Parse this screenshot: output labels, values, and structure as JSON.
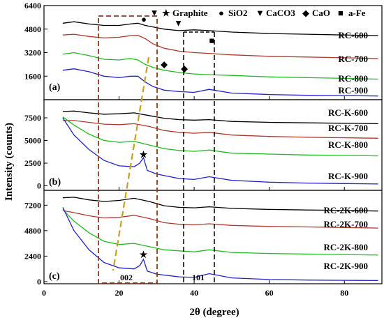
{
  "chart_data": {
    "type": "line",
    "xlabel": "2θ (degree)",
    "ylabel": "Intensity (counts)",
    "xlim": [
      0,
      90
    ],
    "x_ticks": [
      0,
      20,
      40,
      60,
      80
    ],
    "legend": {
      "placement": "top",
      "entries": [
        {
          "symbol": "★",
          "name": "Graphite"
        },
        {
          "symbol": "●",
          "name": "SiO2"
        },
        {
          "symbol": "▼",
          "name": "CaCO3"
        },
        {
          "symbol": "◆",
          "name": "CaO"
        },
        {
          "symbol": "■",
          "name": "a-Fe"
        }
      ]
    },
    "region_labels": {
      "left": "002",
      "right": "101"
    },
    "panels": [
      {
        "letter": "(a)",
        "ylim": [
          0,
          6400
        ],
        "y_ticks": [
          1600,
          3200,
          4800,
          6400
        ],
        "series": [
          {
            "name": "RC-600",
            "color": "#000000",
            "x": [
              5,
              8,
              12,
              16,
              20,
              23,
              25,
              27,
              29,
              32,
              36,
              40,
              44,
              50,
              60,
              70,
              80,
              89
            ],
            "y": [
              5200,
              5300,
              5150,
              5050,
              5050,
              5150,
              5200,
              5050,
              4950,
              4800,
              4700,
              4750,
              4700,
              4600,
              4500,
              4450,
              4400,
              4350
            ]
          },
          {
            "name": "RC-700",
            "color": "#b03a2e",
            "x": [
              5,
              8,
              12,
              16,
              20,
              23,
              25,
              27,
              29,
              32,
              36,
              40,
              44,
              50,
              60,
              70,
              80,
              89
            ],
            "y": [
              4400,
              4450,
              4300,
              4200,
              4250,
              4350,
              4380,
              4150,
              3800,
              3500,
              3300,
              3200,
              3150,
              3050,
              2950,
              2900,
              2850,
              2800
            ]
          },
          {
            "name": "RC-800",
            "color": "#22bb22",
            "x": [
              5,
              8,
              12,
              16,
              20,
              23,
              25,
              27,
              29,
              32,
              36,
              40,
              44,
              50,
              60,
              70,
              80,
              89
            ],
            "y": [
              3100,
              3200,
              3000,
              2750,
              2700,
              2800,
              2700,
              2400,
              2200,
              2000,
              1850,
              1750,
              1700,
              1650,
              1550,
              1500,
              1450,
              1400
            ]
          },
          {
            "name": "RC-900",
            "color": "#2222cc",
            "x": [
              5,
              8,
              12,
              16,
              20,
              23,
              25,
              27,
              29,
              32,
              36,
              40,
              44,
              50,
              60,
              70,
              80,
              89
            ],
            "y": [
              2000,
              2100,
              1900,
              1600,
              1500,
              1600,
              1600,
              1200,
              900,
              650,
              550,
              500,
              700,
              450,
              350,
              300,
              280,
              250
            ]
          }
        ],
        "series_labels": [
          "RC-600",
          "RC-700",
          "RC-800",
          "RC-900"
        ]
      },
      {
        "letter": "(b)",
        "ylim": [
          -500,
          9500
        ],
        "y_ticks": [
          0,
          2500,
          5000,
          7500
        ],
        "series": [
          {
            "name": "RC-K-600",
            "color": "#000000",
            "x": [
              5,
              8,
              12,
              16,
              20,
              24,
              28,
              32,
              36,
              40,
              44,
              50,
              60,
              70,
              80,
              89
            ],
            "y": [
              8200,
              8250,
              8050,
              7900,
              7950,
              8050,
              7750,
              7450,
              7300,
              7250,
              7300,
              7100,
              7000,
              6950,
              6900,
              6850
            ]
          },
          {
            "name": "RC-K-700",
            "color": "#b03a2e",
            "x": [
              5,
              8,
              12,
              16,
              20,
              24,
              28,
              32,
              36,
              40,
              44,
              50,
              60,
              70,
              80,
              89
            ],
            "y": [
              7200,
              7200,
              7000,
              6800,
              6750,
              6850,
              6550,
              6100,
              5900,
              5800,
              5900,
              5600,
              5450,
              5350,
              5300,
              5250
            ]
          },
          {
            "name": "RC-K-800",
            "color": "#22bb22",
            "x": [
              5,
              8,
              12,
              16,
              20,
              24,
              28,
              32,
              36,
              40,
              44,
              50,
              60,
              70,
              80,
              89
            ],
            "y": [
              7600,
              6700,
              5700,
              5000,
              4800,
              4900,
              4500,
              4100,
              3900,
              3800,
              3950,
              3600,
              3500,
              3400,
              3350,
              3300
            ]
          },
          {
            "name": "RC-K-900",
            "color": "#2222cc",
            "x": [
              5,
              8,
              12,
              16,
              20,
              24,
              25.5,
              26.5,
              27.5,
              30,
              36,
              40,
              44,
              50,
              60,
              70,
              80,
              89
            ],
            "y": [
              7500,
              5600,
              4000,
              2800,
              2200,
              2100,
              2500,
              3100,
              1700,
              1300,
              800,
              700,
              1000,
              600,
              400,
              300,
              250,
              200
            ]
          }
        ],
        "series_labels": [
          "RC-K-600",
          "RC-K-700",
          "RC-K-800",
          "RC-K-900"
        ]
      },
      {
        "letter": "(c)",
        "ylim": [
          -200,
          8600
        ],
        "y_ticks": [
          0,
          2400,
          4800,
          7200
        ],
        "series": [
          {
            "name": "RC-2K-600",
            "color": "#000000",
            "x": [
              5,
              8,
              12,
              16,
              20,
              24,
              28,
              32,
              36,
              40,
              44,
              50,
              60,
              70,
              80,
              89
            ],
            "y": [
              7900,
              7950,
              7700,
              7550,
              7650,
              7850,
              7550,
              7150,
              7000,
              6950,
              7050,
              6900,
              6800,
              6750,
              6700,
              6650
            ]
          },
          {
            "name": "RC-2K-700",
            "color": "#b03a2e",
            "x": [
              5,
              8,
              12,
              16,
              20,
              24,
              28,
              32,
              36,
              40,
              44,
              50,
              60,
              70,
              80,
              89
            ],
            "y": [
              6700,
              6500,
              6200,
              6000,
              6050,
              6250,
              5950,
              5550,
              5400,
              5350,
              5450,
              5300,
              5200,
              5150,
              5100,
              5050
            ]
          },
          {
            "name": "RC-2K-800",
            "color": "#22bb22",
            "x": [
              5,
              8,
              12,
              16,
              20,
              24,
              28,
              32,
              36,
              40,
              44,
              50,
              60,
              70,
              80,
              89
            ],
            "y": [
              6800,
              5700,
              4600,
              3800,
              3500,
              3600,
              3300,
              3000,
              2900,
              2800,
              3000,
              2750,
              2650,
              2600,
              2550,
              2500
            ]
          },
          {
            "name": "RC-2K-900",
            "color": "#2222cc",
            "x": [
              5,
              8,
              12,
              16,
              20,
              24,
              25.5,
              26.5,
              27.5,
              30,
              36,
              40,
              44,
              50,
              60,
              70,
              80,
              89
            ],
            "y": [
              7000,
              4800,
              3000,
              1800,
              1300,
              1200,
              1500,
              2100,
              1000,
              700,
              450,
              400,
              750,
              350,
              200,
              150,
              120,
              100
            ]
          }
        ],
        "series_labels": [
          "RC-2K-600",
          "RC-2K-700",
          "RC-2K-800",
          "RC-2K-900"
        ]
      }
    ],
    "peak_markers": [
      {
        "panel": 0,
        "symbol": "●",
        "x": 26.6,
        "y": 5500
      },
      {
        "panel": 0,
        "symbol": "▼",
        "x": 29.4,
        "y": 5950
      },
      {
        "panel": 0,
        "symbol": "▼",
        "x": 35.8,
        "y": 5250
      },
      {
        "panel": 0,
        "symbol": "◆",
        "x": 32.0,
        "y": 2450
      },
      {
        "panel": 0,
        "symbol": "◆",
        "x": 37.4,
        "y": 2150
      },
      {
        "panel": 0,
        "symbol": "■",
        "x": 44.7,
        "y": 4050
      },
      {
        "panel": 1,
        "symbol": "★",
        "x": 26.5,
        "y": 3500
      },
      {
        "panel": 2,
        "symbol": "★",
        "x": 26.5,
        "y": 2600
      }
    ]
  }
}
